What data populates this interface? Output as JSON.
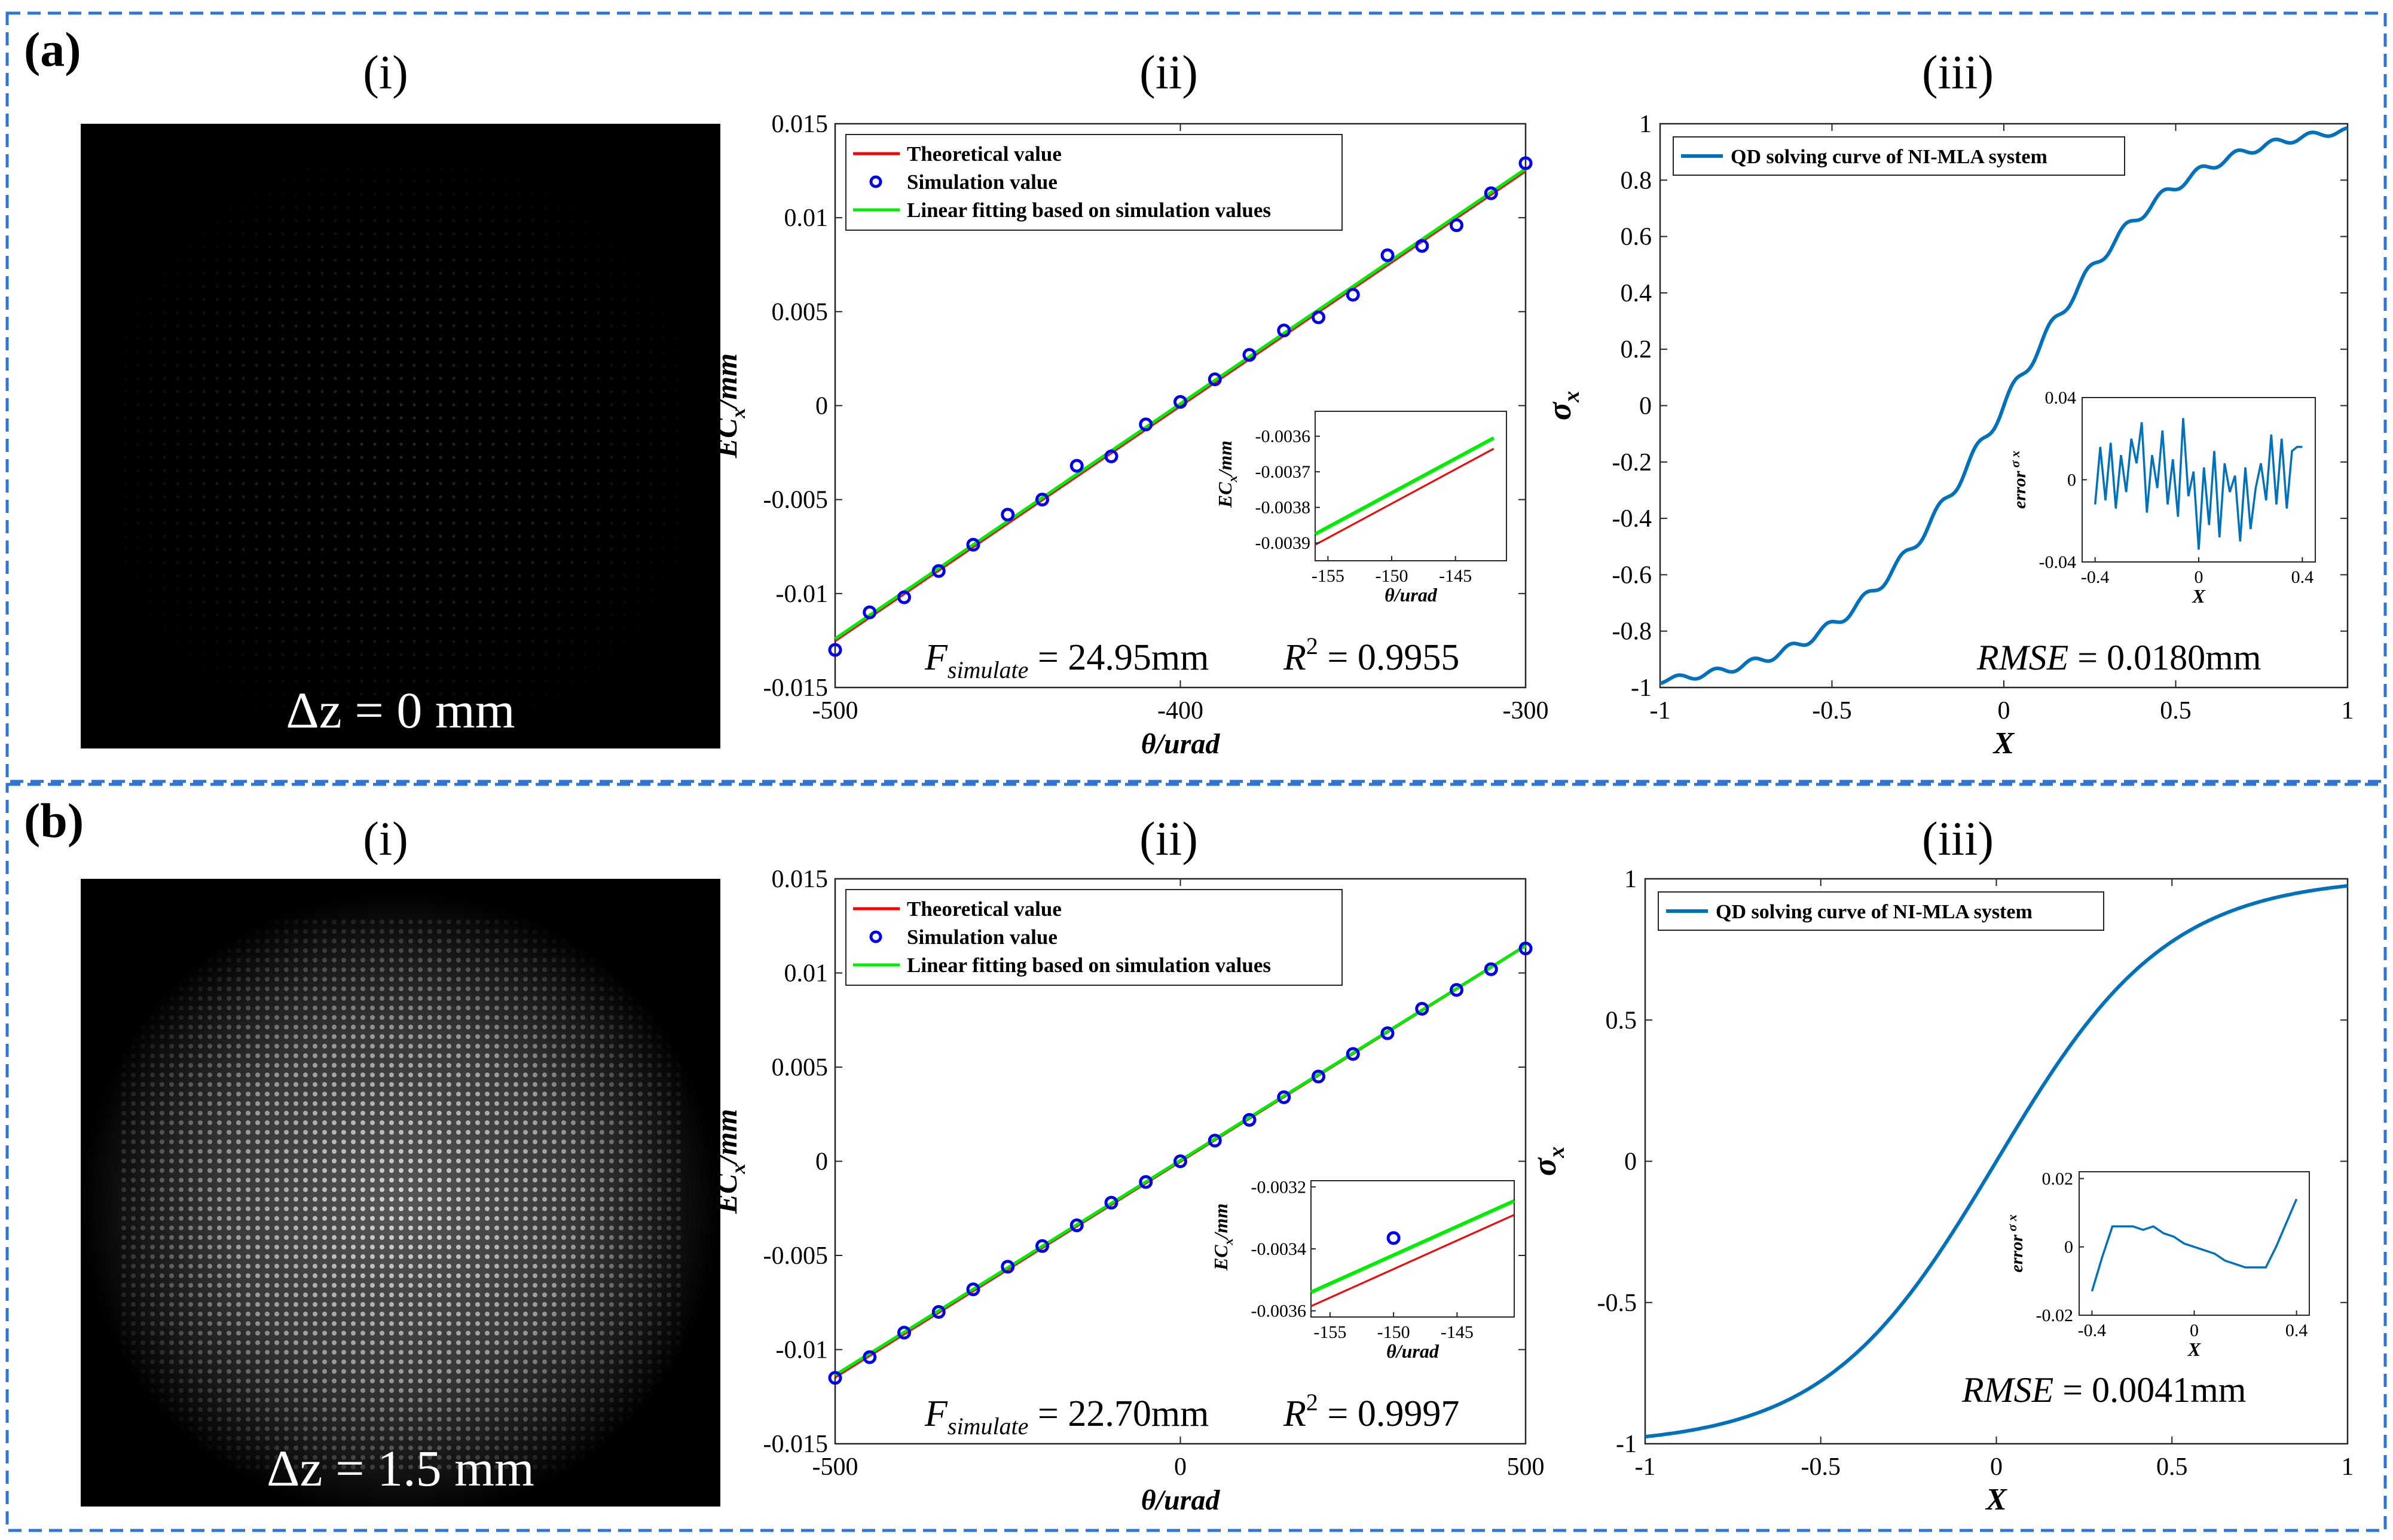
{
  "panels": [
    {
      "label": "(a)",
      "subtitles": [
        "(i)",
        "(ii)",
        "(iii)"
      ],
      "image": {
        "delta_z": "Δz = 0 mm",
        "brightness": 0.15,
        "pattern": "sparse dot array"
      },
      "calib": {
        "legend": [
          "Theoretical value",
          "Simulation value",
          "Linear fitting based on simulation values"
        ],
        "xlabel": "θ/urad",
        "ylabel_main": "EC",
        "ylabel_sub": "x",
        "ylabel_unit": "/mm",
        "xticks": [
          "-500",
          "-400",
          "-300"
        ],
        "yticks": [
          "0.015",
          "0.01",
          "0.005",
          "0",
          "-0.005",
          "-0.01",
          "-0.015"
        ],
        "F_label": "F",
        "F_sub": "simulate",
        "F_value": "= 24.95mm",
        "R2_label": "R",
        "R2_sup": "2",
        "R2_value": "= 0.9955",
        "inset": {
          "xticks": [
            "-155",
            "-150",
            "-145"
          ],
          "yticks": [
            "-0.0036",
            "-0.0037",
            "-0.0038",
            "-0.0039"
          ],
          "xlabel": "θ/urad"
        }
      },
      "qd": {
        "legend": "QD solving curve of NI-MLA system",
        "xlabel": "X",
        "ylabel": "σ",
        "ylabel_sub": "x",
        "xticks": [
          "-1",
          "-0.5",
          "0",
          "0.5",
          "1"
        ],
        "yticks": [
          "1",
          "0.8",
          "0.6",
          "0.4",
          "0.2",
          "0",
          "-0.2",
          "-0.4",
          "-0.6",
          "-0.8",
          "-1"
        ],
        "rmse_label": "RMSE",
        "rmse_value": "= 0.0180mm",
        "inset": {
          "ylabel": "error",
          "ylabel_sub": "σ x",
          "xticks": [
            "-0.4",
            "0",
            "0.4"
          ],
          "yticks": [
            "0.04",
            "0",
            "-0.04"
          ],
          "xlabel": "X"
        }
      }
    },
    {
      "label": "(b)",
      "subtitles": [
        "(i)",
        "(ii)",
        "(iii)"
      ],
      "image": {
        "delta_z": "Δz = 1.5 mm",
        "brightness": 0.75,
        "pattern": "dense bright speckle disk"
      },
      "calib": {
        "legend": [
          "Theoretical value",
          "Simulation value",
          "Linear fitting based on simulation values"
        ],
        "xlabel": "θ/urad",
        "ylabel_main": "EC",
        "ylabel_sub": "x",
        "ylabel_unit": "/mm",
        "xticks": [
          "-500",
          "0",
          "500"
        ],
        "yticks": [
          "0.015",
          "0.01",
          "0.005",
          "0",
          "-0.005",
          "-0.01",
          "-0.015"
        ],
        "F_label": "F",
        "F_sub": "simulate",
        "F_value": "= 22.70mm",
        "R2_label": "R",
        "R2_sup": "2",
        "R2_value": "= 0.9997",
        "inset": {
          "xticks": [
            "-155",
            "-150",
            "-145"
          ],
          "yticks": [
            "-0.0032",
            "-0.0034",
            "-0.0036"
          ],
          "xlabel": "θ/urad"
        }
      },
      "qd": {
        "legend": "QD solving curve of NI-MLA system",
        "xlabel": "X",
        "ylabel": "σ",
        "ylabel_sub": "x",
        "xticks": [
          "-1",
          "-0.5",
          "0",
          "0.5",
          "1"
        ],
        "yticks": [
          "1",
          "0.5",
          "0",
          "-0.5",
          "-1"
        ],
        "rmse_label": "RMSE",
        "rmse_value": "= 0.0041mm",
        "inset": {
          "ylabel": "error",
          "ylabel_sub": "σ x",
          "xticks": [
            "-0.4",
            "0",
            "0.4"
          ],
          "yticks": [
            "0.02",
            "0",
            "-0.02"
          ],
          "xlabel": "X"
        }
      }
    }
  ],
  "colors": {
    "theoretical": "#ff0000",
    "fitting": "#00ee00",
    "simulation": "#0000ee",
    "qd_curve": "#0072bd",
    "frame_dash": "#2e75d6"
  },
  "chart_data": [
    {
      "type": "scatter",
      "panel": "(a)(ii)",
      "xlabel": "θ/urad",
      "ylabel": "EC_x/mm",
      "xlim": [
        -500,
        -300
      ],
      "ylim": [
        -0.015,
        0.015
      ],
      "series": [
        {
          "name": "Theoretical value",
          "type": "line",
          "x": [
            -500,
            -300
          ],
          "y": [
            -0.0125,
            0.0125
          ]
        },
        {
          "name": "Simulation value",
          "type": "scatter",
          "x": [
            -500,
            -490,
            -480,
            -470,
            -460,
            -450,
            -440,
            -430,
            -420,
            -410,
            -400,
            -390,
            -380,
            -370,
            -360,
            -350,
            -340,
            -330,
            -320,
            -310,
            -300
          ],
          "y": [
            -0.013,
            -0.011,
            -0.0102,
            -0.0088,
            -0.0074,
            -0.0058,
            -0.005,
            -0.0032,
            -0.0027,
            -0.001,
            0.0002,
            0.0014,
            0.0027,
            0.004,
            0.0047,
            0.0059,
            0.008,
            0.0085,
            0.0096,
            0.0113,
            0.0129
          ]
        },
        {
          "name": "Linear fitting based on simulation values",
          "type": "line",
          "x": [
            -500,
            -300
          ],
          "y": [
            -0.0124,
            0.0126
          ]
        }
      ],
      "annotations": [
        "F_simulate = 24.95mm",
        "R² = 0.9955"
      ],
      "inset": {
        "xlim": [
          -156,
          -141
        ],
        "ylim": [
          -0.00395,
          -0.00353
        ],
        "series": [
          {
            "name": "Theoretical value",
            "x": [
              -156,
              -142
            ],
            "y": [
              -0.003905,
              -0.003635
            ]
          },
          {
            "name": "Linear fitting based on simulation values",
            "x": [
              -156,
              -142
            ],
            "y": [
              -0.003875,
              -0.003605
            ]
          }
        ]
      }
    },
    {
      "type": "line",
      "panel": "(a)(iii)",
      "xlabel": "X",
      "ylabel": "σ_x",
      "xlim": [
        -1,
        1
      ],
      "ylim": [
        -1,
        1
      ],
      "series": [
        {
          "name": "QD solving curve of NI-MLA system",
          "wave_amp": 0.025
        }
      ],
      "annotations": [
        "RMSE = 0.0180mm"
      ],
      "inset": {
        "xlim": [
          -0.45,
          0.45
        ],
        "ylim": [
          -0.04,
          0.04
        ],
        "x": [
          -0.4,
          -0.38,
          -0.36,
          -0.34,
          -0.32,
          -0.3,
          -0.28,
          -0.26,
          -0.24,
          -0.22,
          -0.2,
          -0.18,
          -0.16,
          -0.14,
          -0.12,
          -0.1,
          -0.08,
          -0.06,
          -0.04,
          -0.02,
          0,
          0.02,
          0.04,
          0.06,
          0.08,
          0.1,
          0.12,
          0.14,
          0.16,
          0.18,
          0.2,
          0.22,
          0.24,
          0.26,
          0.28,
          0.3,
          0.32,
          0.34,
          0.36,
          0.38,
          0.4
        ],
        "y": [
          -0.012,
          0.016,
          -0.01,
          0.018,
          -0.014,
          0.012,
          -0.006,
          0.02,
          0.008,
          0.028,
          -0.016,
          0.012,
          -0.004,
          0.024,
          -0.012,
          0.01,
          -0.018,
          0.03,
          -0.008,
          0.004,
          -0.034,
          0.006,
          -0.022,
          0.014,
          -0.028,
          0.008,
          -0.006,
          0.002,
          -0.03,
          0.006,
          -0.024,
          -0.004,
          0.008,
          -0.01,
          0.022,
          -0.012,
          0.02,
          -0.014,
          0.014,
          0.016,
          0.016
        ]
      }
    },
    {
      "type": "scatter",
      "panel": "(b)(ii)",
      "xlabel": "θ/urad",
      "ylabel": "EC_x/mm",
      "xlim": [
        -500,
        500
      ],
      "ylim": [
        -0.015,
        0.015
      ],
      "series": [
        {
          "name": "Theoretical value",
          "type": "line",
          "x": [
            -500,
            500
          ],
          "y": [
            -0.01145,
            0.01145
          ]
        },
        {
          "name": "Simulation value",
          "type": "scatter",
          "x": [
            -500,
            -450,
            -400,
            -350,
            -300,
            -250,
            -200,
            -150,
            -100,
            -50,
            0,
            50,
            100,
            150,
            200,
            250,
            300,
            350,
            400,
            450,
            500
          ],
          "y": [
            -0.0115,
            -0.0104,
            -0.0091,
            -0.008,
            -0.0068,
            -0.0056,
            -0.0045,
            -0.0034,
            -0.0022,
            -0.0011,
            0.0,
            0.0011,
            0.0022,
            0.0034,
            0.0045,
            0.0057,
            0.0068,
            0.0081,
            0.0091,
            0.0102,
            0.0113
          ]
        },
        {
          "name": "Linear fitting based on simulation values",
          "type": "line",
          "x": [
            -500,
            500
          ],
          "y": [
            -0.01135,
            0.01145
          ]
        }
      ],
      "annotations": [
        "F_simulate = 22.70mm",
        "R² = 0.9997"
      ],
      "inset": {
        "xlim": [
          -156.5,
          -140.5
        ],
        "ylim": [
          -0.00362,
          -0.00318
        ],
        "series": [
          {
            "name": "Theoretical value",
            "x": [
              -156.5,
              -140.5
            ],
            "y": [
              -0.003585,
              -0.00329
            ]
          },
          {
            "name": "Linear fitting based on simulation values",
            "x": [
              -156.5,
              -140.5
            ],
            "y": [
              -0.00354,
              -0.003245
            ]
          },
          {
            "name": "Simulation value",
            "x": [
              -150
            ],
            "y": [
              -0.003365
            ]
          }
        ]
      }
    },
    {
      "type": "line",
      "panel": "(b)(iii)",
      "xlabel": "X",
      "ylabel": "σ_x",
      "xlim": [
        -1,
        1
      ],
      "ylim": [
        -1,
        1
      ],
      "series": [
        {
          "name": "QD solving curve of NI-MLA system",
          "wave_amp": 0.0
        }
      ],
      "annotations": [
        "RMSE = 0.0041mm"
      ],
      "inset": {
        "xlim": [
          -0.45,
          0.45
        ],
        "ylim": [
          -0.02,
          0.022
        ],
        "x": [
          -0.4,
          -0.36,
          -0.32,
          -0.28,
          -0.24,
          -0.2,
          -0.16,
          -0.12,
          -0.08,
          -0.04,
          0,
          0.04,
          0.08,
          0.12,
          0.16,
          0.2,
          0.24,
          0.28,
          0.32,
          0.36,
          0.4
        ],
        "y": [
          -0.013,
          -0.003,
          0.006,
          0.006,
          0.006,
          0.005,
          0.006,
          0.004,
          0.003,
          0.001,
          0.0,
          -0.001,
          -0.002,
          -0.004,
          -0.005,
          -0.006,
          -0.006,
          -0.006,
          0.0,
          0.007,
          0.014
        ]
      }
    }
  ]
}
